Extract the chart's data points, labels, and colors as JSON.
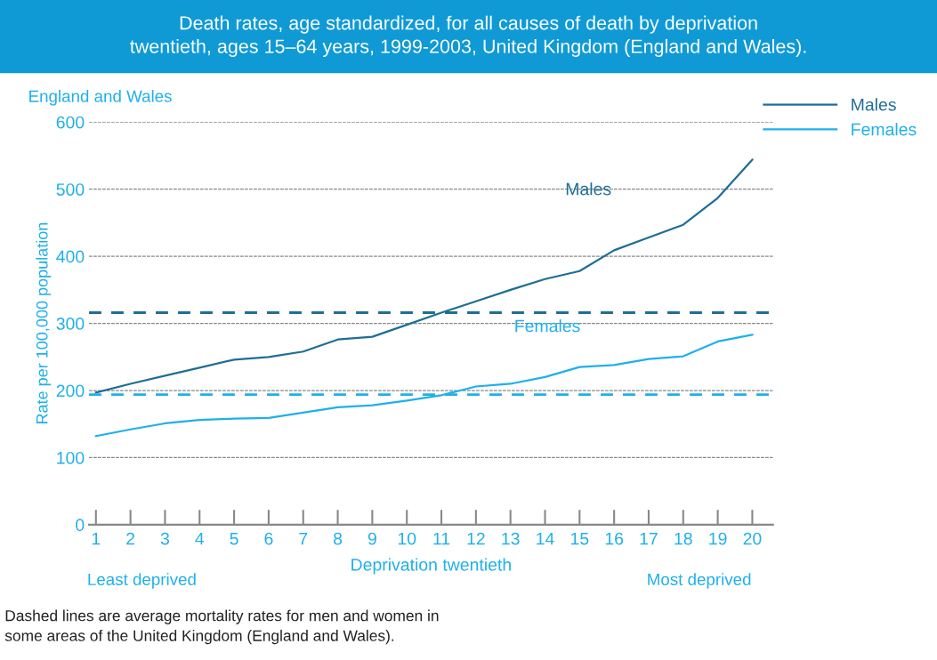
{
  "chart_data": {
    "type": "line",
    "title": "Death rates, age standardized, for all causes of death by deprivation\ntwentieth, ages 15–64 years, 1999-2003, United Kingdom (England and Wales).",
    "subtitle": "England and Wales",
    "ylabel": "Rate per 100,000 population",
    "xlabel": "Deprivation twentieth",
    "categories": [
      "1",
      "2",
      "3",
      "4",
      "5",
      "6",
      "7",
      "8",
      "9",
      "10",
      "11",
      "12",
      "13",
      "14",
      "15",
      "16",
      "17",
      "18",
      "19",
      "20"
    ],
    "series": [
      {
        "name": "Males",
        "color": "#1f6e94",
        "values": [
          197,
          210,
          222,
          234,
          246,
          250,
          258,
          276,
          280,
          298,
          316,
          333,
          350,
          366,
          378,
          409,
          428,
          447,
          487,
          544
        ]
      },
      {
        "name": "Females",
        "color": "#1eb0ea",
        "values": [
          132,
          142,
          151,
          156,
          158,
          159,
          167,
          175,
          178,
          185,
          193,
          206,
          210,
          220,
          235,
          238,
          247,
          251,
          273,
          283
        ]
      }
    ],
    "ylim": [
      0,
      600
    ],
    "yticks": [
      0,
      100,
      200,
      300,
      400,
      500,
      600
    ],
    "grid": "y",
    "legend": "top right",
    "line_style": "solid",
    "marker": "none",
    "ref_lines": [
      {
        "axis": "y",
        "value": 316,
        "color": "#1f6e94",
        "line_style": "dashed"
      },
      {
        "axis": "y",
        "value": 194,
        "color": "#1eb0ea",
        "line_style": "dashed"
      }
    ],
    "annotations": [
      "Males",
      "Females",
      "Least deprived",
      "Most deprived",
      "Dashed lines are average mortality rates for men and women in\nsome areas of the United Kingdom (England and Wales)."
    ]
  }
}
